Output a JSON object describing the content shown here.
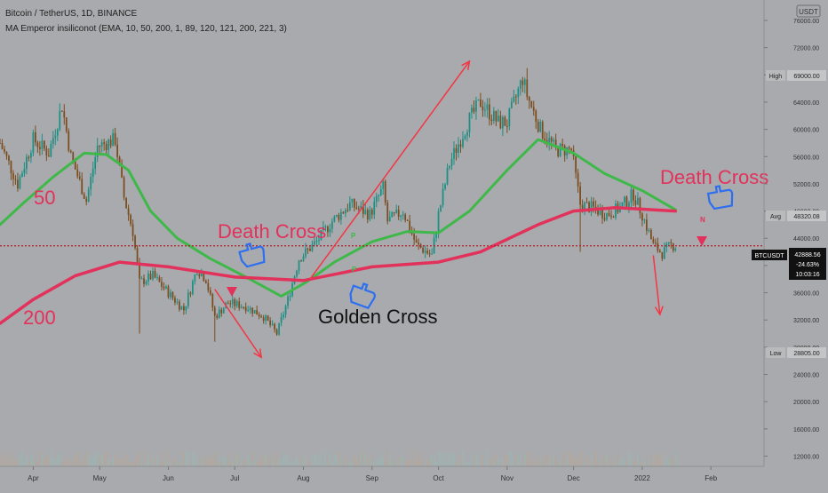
{
  "header": {
    "symbol_line": "Bitcoin / TetherUS, 1D, BINANCE",
    "indicator_line": "MA Emperor insiliconot (EMA, 10, 50, 200, 1, 89, 120, 121, 200, 221, 3)"
  },
  "currency_badge": "USDT",
  "colors": {
    "background": "#a9aaad",
    "up_candle": "#1c8f84",
    "down_candle": "#7a4c1e",
    "ema50": "#3fb84a",
    "ema200": "#e2325c",
    "annotation_red": "#e2325c",
    "annotation_arrow": "#f23645",
    "hand_icon": "#2d6ff0",
    "price_line": "#b31b2a"
  },
  "annotations": {
    "label_50": "50",
    "label_200": "200",
    "death_cross_1": "Death Cross",
    "death_cross_2": "Death Cross",
    "golden_cross": "Golden Cross",
    "marker_p1": "P",
    "marker_p2": "P",
    "marker_n": "N"
  },
  "price_badges": {
    "high_label": "High",
    "high_value": "69000.00",
    "avg_label": "Avg",
    "avg_value": "48320.08",
    "low_label": "Low",
    "low_value": "28805.00",
    "current_symbol": "BTCUSDT",
    "current_price": "42888.56",
    "current_change": "-24.63%",
    "countdown": "10:03:16"
  },
  "chart_data": {
    "type": "candlestick",
    "title": "Bitcoin / TetherUS, 1D, BINANCE",
    "y_ticks": [
      "76000.00",
      "72000.00",
      "68000.00",
      "64000.00",
      "60000.00",
      "56000.00",
      "52000.00",
      "48000.00",
      "44000.00",
      "40000.00",
      "36000.00",
      "32000.00",
      "28000.00",
      "24000.00",
      "20000.00",
      "16000.00",
      "12000.00"
    ],
    "x_ticks": [
      "Apr",
      "May",
      "Jun",
      "Jul",
      "Aug",
      "Sep",
      "Oct",
      "Nov",
      "Dec",
      "2022",
      "Feb"
    ],
    "x_range": [
      "2021-03-17",
      "2022-02-25"
    ],
    "ylim": [
      10500,
      79000
    ],
    "price_path": [
      [
        "2021-03-17",
        58000
      ],
      [
        "2021-03-25",
        52000
      ],
      [
        "2021-04-01",
        58500
      ],
      [
        "2021-04-08",
        56500
      ],
      [
        "2021-04-14",
        63500
      ],
      [
        "2021-04-18",
        56000
      ],
      [
        "2021-04-25",
        49500
      ],
      [
        "2021-04-30",
        57500
      ],
      [
        "2021-05-08",
        58500
      ],
      [
        "2021-05-12",
        50000
      ],
      [
        "2021-05-16",
        45000
      ],
      [
        "2021-05-19",
        37500
      ],
      [
        "2021-05-25",
        38500
      ],
      [
        "2021-06-01",
        36000
      ],
      [
        "2021-06-08",
        33500
      ],
      [
        "2021-06-14",
        39500
      ],
      [
        "2021-06-18",
        38000
      ],
      [
        "2021-06-22",
        32500
      ],
      [
        "2021-06-28",
        34500
      ],
      [
        "2021-07-06",
        34000
      ],
      [
        "2021-07-14",
        32500
      ],
      [
        "2021-07-20",
        30000
      ],
      [
        "2021-07-25",
        35000
      ],
      [
        "2021-07-30",
        41000
      ],
      [
        "2021-08-07",
        43500
      ],
      [
        "2021-08-14",
        46500
      ],
      [
        "2021-08-22",
        49000
      ],
      [
        "2021-08-31",
        47500
      ],
      [
        "2021-09-06",
        51500
      ],
      [
        "2021-09-08",
        46500
      ],
      [
        "2021-09-15",
        48000
      ],
      [
        "2021-09-21",
        43000
      ],
      [
        "2021-09-28",
        41500
      ],
      [
        "2021-10-01",
        47500
      ],
      [
        "2021-10-06",
        55000
      ],
      [
        "2021-10-15",
        61500
      ],
      [
        "2021-10-20",
        64000
      ],
      [
        "2021-10-28",
        61000
      ],
      [
        "2021-11-01",
        61000
      ],
      [
        "2021-11-08",
        67500
      ],
      [
        "2021-11-10",
        65000
      ],
      [
        "2021-11-16",
        60000
      ],
      [
        "2021-11-23",
        57000
      ],
      [
        "2021-11-30",
        57000
      ],
      [
        "2021-12-04",
        49000
      ],
      [
        "2021-12-09",
        48500
      ],
      [
        "2021-12-16",
        47500
      ],
      [
        "2021-12-22",
        48500
      ],
      [
        "2021-12-28",
        50500
      ],
      [
        "2022-01-01",
        47500
      ],
      [
        "2022-01-06",
        43000
      ],
      [
        "2022-01-10",
        41800
      ],
      [
        "2022-01-14",
        43000
      ],
      [
        "2022-01-16",
        42888.56
      ]
    ],
    "series": [
      {
        "name": "50",
        "values": [
          [
            "2021-03-17",
            46000
          ],
          [
            "2021-03-27",
            49000
          ],
          [
            "2021-04-10",
            53000
          ],
          [
            "2021-04-24",
            56500
          ],
          [
            "2021-05-04",
            56300
          ],
          [
            "2021-05-14",
            54000
          ],
          [
            "2021-05-24",
            48000
          ],
          [
            "2021-06-05",
            44000
          ],
          [
            "2021-06-20",
            41000
          ],
          [
            "2021-07-05",
            38500
          ],
          [
            "2021-07-22",
            35500
          ],
          [
            "2021-08-02",
            37500
          ],
          [
            "2021-08-15",
            40500
          ],
          [
            "2021-09-01",
            43500
          ],
          [
            "2021-09-17",
            45000
          ],
          [
            "2021-10-01",
            44800
          ],
          [
            "2021-10-15",
            48000
          ],
          [
            "2021-11-01",
            54000
          ],
          [
            "2021-11-15",
            58500
          ],
          [
            "2021-12-01",
            56500
          ],
          [
            "2021-12-15",
            53500
          ],
          [
            "2022-01-01",
            51000
          ],
          [
            "2022-01-16",
            48200
          ]
        ]
      },
      {
        "name": "200",
        "values": [
          [
            "2021-03-17",
            31500
          ],
          [
            "2021-04-01",
            35000
          ],
          [
            "2021-04-20",
            38500
          ],
          [
            "2021-05-10",
            40500
          ],
          [
            "2021-06-01",
            39800
          ],
          [
            "2021-07-01",
            38300
          ],
          [
            "2021-08-01",
            37800
          ],
          [
            "2021-09-01",
            39800
          ],
          [
            "2021-10-01",
            40500
          ],
          [
            "2021-10-20",
            42000
          ],
          [
            "2021-11-15",
            46000
          ],
          [
            "2021-12-01",
            48000
          ],
          [
            "2021-12-20",
            48500
          ],
          [
            "2022-01-16",
            48000
          ]
        ]
      }
    ],
    "wick_extremes": [
      {
        "date": "2021-05-19",
        "low": 30000
      },
      {
        "date": "2021-06-22",
        "low": 28805
      },
      {
        "date": "2021-11-10",
        "high": 69000
      },
      {
        "date": "2021-12-04",
        "low": 42000
      }
    ],
    "arrows": [
      {
        "from": [
          "2021-06-22",
          36500
        ],
        "to": [
          "2021-07-13",
          26500
        ]
      },
      {
        "from": [
          "2021-08-04",
          38000
        ],
        "to": [
          "2021-10-15",
          70000
        ]
      },
      {
        "from": [
          "2022-01-06",
          41500
        ],
        "to": [
          "2022-01-09",
          32800
        ]
      }
    ],
    "grid": false,
    "legend": "top-left"
  }
}
